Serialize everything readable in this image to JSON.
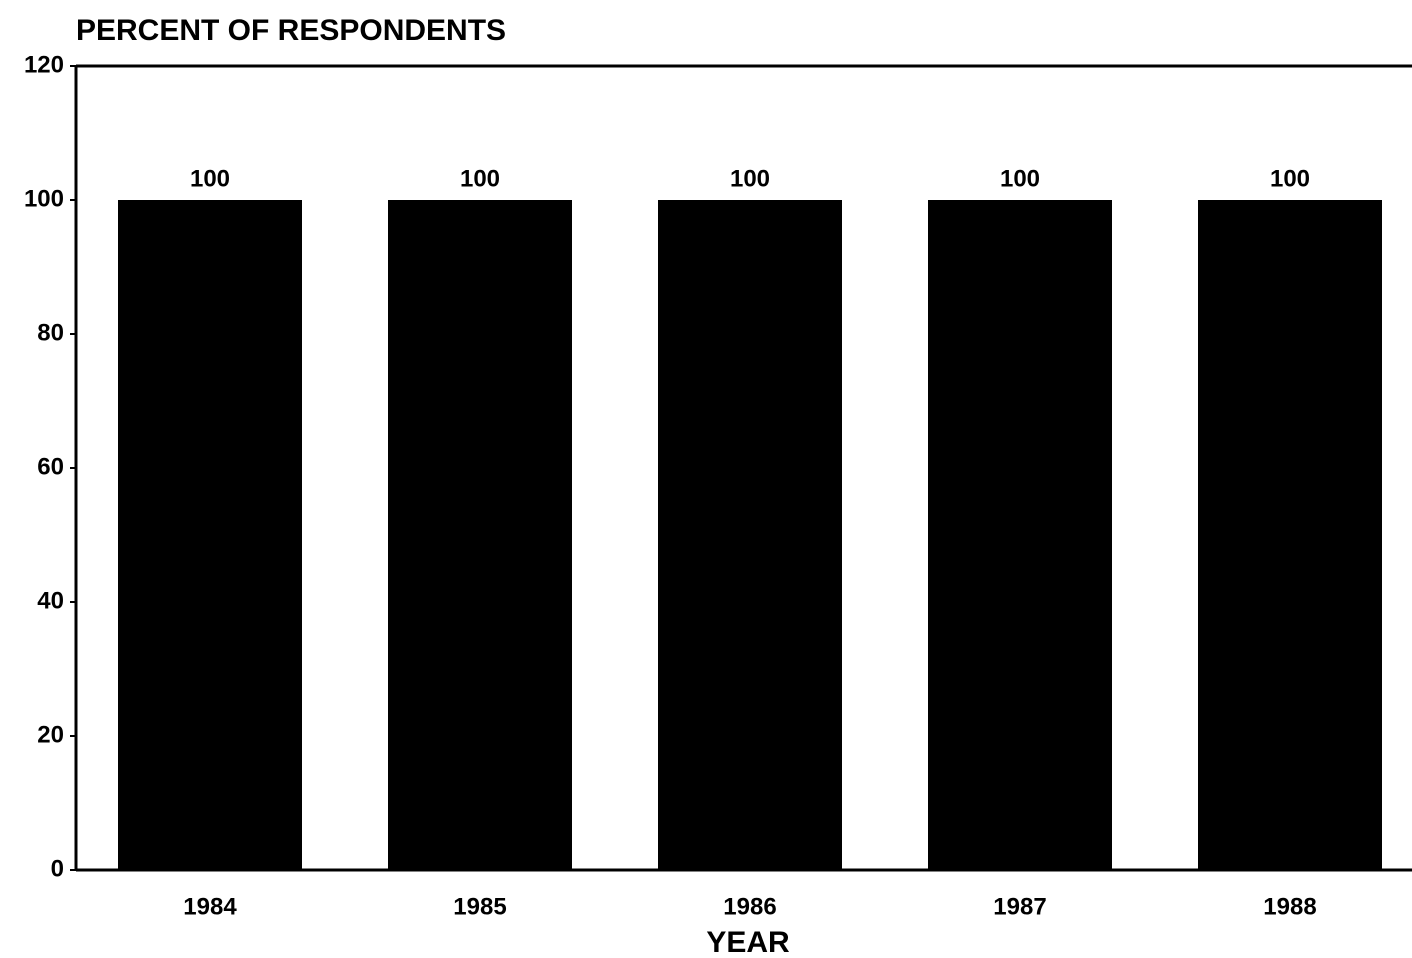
{
  "chart_data": {
    "type": "bar",
    "title": "PERCENT OF RESPONDENTS",
    "x_label": "YEAR",
    "categories": [
      "1984",
      "1985",
      "1986",
      "1987",
      "1988"
    ],
    "values": [
      100,
      100,
      100,
      100,
      100
    ],
    "color": "#000000",
    "ylim": [
      0,
      120
    ],
    "yticks": [
      0,
      20,
      40,
      60,
      80,
      100,
      120
    ]
  }
}
